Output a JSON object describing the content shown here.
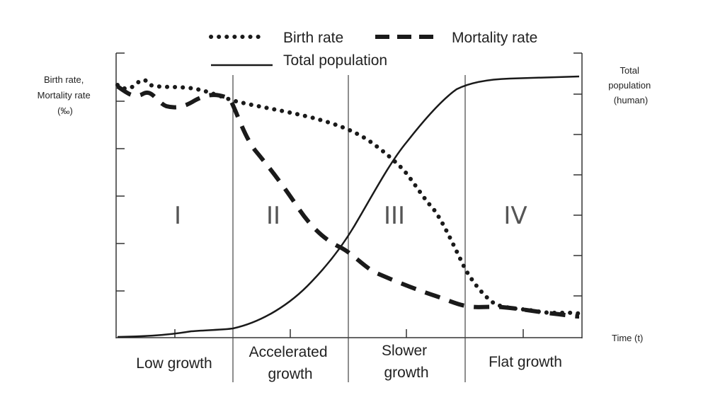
{
  "legend": {
    "birth": "Birth rate",
    "mortality": "Mortality rate",
    "total": "Total population"
  },
  "axes": {
    "left_label": [
      "Birth rate,",
      "Mortality rate",
      "(‰)"
    ],
    "right_label": [
      "Total",
      "population",
      "(human)"
    ],
    "x_label": "Time (t)"
  },
  "stages": [
    {
      "numeral": "I",
      "label": [
        "Low growth"
      ]
    },
    {
      "numeral": "II",
      "label": [
        "Accelerated",
        "growth"
      ]
    },
    {
      "numeral": "III",
      "label": [
        "Slower",
        "growth"
      ]
    },
    {
      "numeral": "IV",
      "label": [
        "Flat growth"
      ]
    }
  ]
}
